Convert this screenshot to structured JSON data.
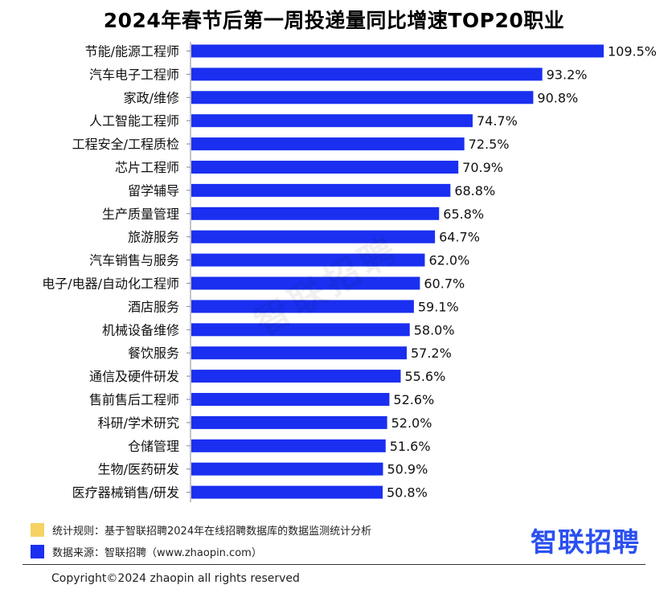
{
  "chart_data": {
    "type": "bar",
    "orientation": "horizontal",
    "title": "2024年春节后第一周投递量同比增速TOP20职业",
    "categories": [
      "节能/能源工程师",
      "汽车电子工程师",
      "家政/维修",
      "人工智能工程师",
      "工程安全/工程质检",
      "芯片工程师",
      "留学辅导",
      "生产质量管理",
      "旅游服务",
      "汽车销售与服务",
      "电子/电器/自动化工程师",
      "酒店服务",
      "机械设备维修",
      "餐饮服务",
      "通信及硬件研发",
      "售前售后工程师",
      "科研/学术研究",
      "仓储管理",
      "生物/医药研发",
      "医疗器械销售/研发"
    ],
    "values": [
      109.5,
      93.2,
      90.8,
      74.7,
      72.5,
      70.9,
      68.8,
      65.8,
      64.7,
      62.0,
      60.7,
      59.1,
      58.0,
      57.2,
      55.6,
      52.6,
      52.0,
      51.6,
      50.9,
      50.8
    ],
    "value_labels": [
      "109.5%",
      "93.2%",
      "90.8%",
      "74.7%",
      "72.5%",
      "70.9%",
      "68.8%",
      "65.8%",
      "64.7%",
      "62.0%",
      "60.7%",
      "59.1%",
      "58.0%",
      "57.2%",
      "55.6%",
      "52.6%",
      "52.0%",
      "51.6%",
      "50.9%",
      "50.8%"
    ],
    "unit": "%",
    "bar_color": "#1a2ff0",
    "grid": false
  },
  "watermark": "智联招聘",
  "legend": [
    {
      "text": "统计规则：基于智联招聘2024年在线招聘数据库的数据监测统计分析",
      "color": "#f5d262"
    },
    {
      "text": "数据来源：智联招聘（www.zhaopin.com）",
      "color": "#1a2ff0"
    }
  ],
  "logo": "智联招聘",
  "copyright": "Copyright©2024 zhaopin all rights reserved"
}
